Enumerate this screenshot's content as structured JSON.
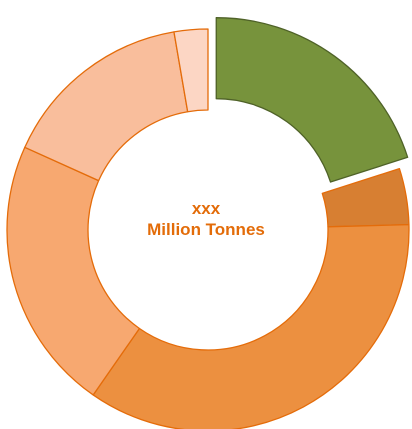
{
  "chart_data": {
    "type": "pie",
    "variant": "donut",
    "center_label": {
      "line1": "xxx",
      "line2": "Million Tonnes"
    },
    "label_color": "#E36C09",
    "slices": [
      {
        "value": 20.0,
        "color": "#77933C",
        "stroke": "#4F6228",
        "exploded": true
      },
      {
        "value": 4.5,
        "color": "#D77F32",
        "stroke": "#E46C0A",
        "exploded": false
      },
      {
        "value": 35.0,
        "color": "#EC9040",
        "stroke": "#E46C0A",
        "exploded": false
      },
      {
        "value": 22.0,
        "color": "#F7A870",
        "stroke": "#E46C0A",
        "exploded": false
      },
      {
        "value": 15.5,
        "color": "#F9BE9C",
        "stroke": "#E46C0A",
        "exploded": false
      },
      {
        "value": 2.7,
        "color": "#FCD6C4",
        "stroke": "#E46C0A",
        "exploded": false
      }
    ]
  }
}
